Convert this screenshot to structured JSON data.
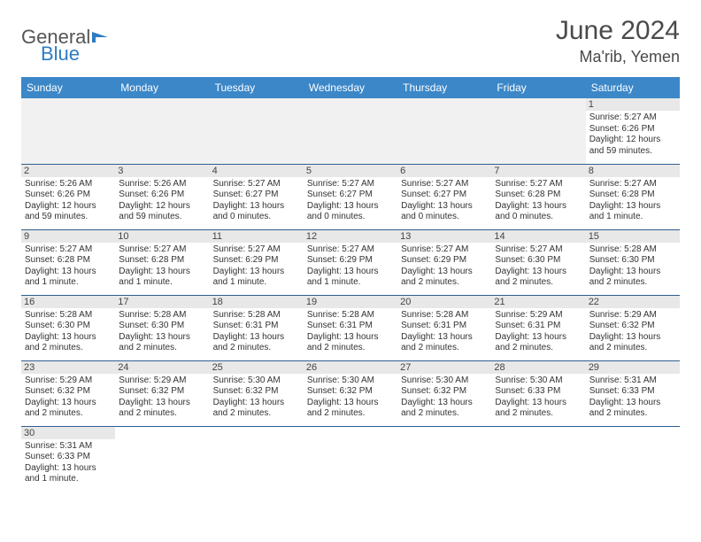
{
  "logo": {
    "text1": "General",
    "text2": "Blue"
  },
  "title": "June 2024",
  "location": "Ma'rib, Yemen",
  "colors": {
    "header_bg": "#3b87c8",
    "header_text": "#ffffff",
    "daynum_bg": "#e8e8e8",
    "row_border": "#2e5f8f",
    "logo_blue": "#2e7cc0"
  },
  "weekdays": [
    "Sunday",
    "Monday",
    "Tuesday",
    "Wednesday",
    "Thursday",
    "Friday",
    "Saturday"
  ],
  "weeks": [
    [
      null,
      null,
      null,
      null,
      null,
      null,
      {
        "d": "1",
        "sr": "Sunrise: 5:27 AM",
        "ss": "Sunset: 6:26 PM",
        "dl1": "Daylight: 12 hours",
        "dl2": "and 59 minutes."
      }
    ],
    [
      {
        "d": "2",
        "sr": "Sunrise: 5:26 AM",
        "ss": "Sunset: 6:26 PM",
        "dl1": "Daylight: 12 hours",
        "dl2": "and 59 minutes."
      },
      {
        "d": "3",
        "sr": "Sunrise: 5:26 AM",
        "ss": "Sunset: 6:26 PM",
        "dl1": "Daylight: 12 hours",
        "dl2": "and 59 minutes."
      },
      {
        "d": "4",
        "sr": "Sunrise: 5:27 AM",
        "ss": "Sunset: 6:27 PM",
        "dl1": "Daylight: 13 hours",
        "dl2": "and 0 minutes."
      },
      {
        "d": "5",
        "sr": "Sunrise: 5:27 AM",
        "ss": "Sunset: 6:27 PM",
        "dl1": "Daylight: 13 hours",
        "dl2": "and 0 minutes."
      },
      {
        "d": "6",
        "sr": "Sunrise: 5:27 AM",
        "ss": "Sunset: 6:27 PM",
        "dl1": "Daylight: 13 hours",
        "dl2": "and 0 minutes."
      },
      {
        "d": "7",
        "sr": "Sunrise: 5:27 AM",
        "ss": "Sunset: 6:28 PM",
        "dl1": "Daylight: 13 hours",
        "dl2": "and 0 minutes."
      },
      {
        "d": "8",
        "sr": "Sunrise: 5:27 AM",
        "ss": "Sunset: 6:28 PM",
        "dl1": "Daylight: 13 hours",
        "dl2": "and 1 minute."
      }
    ],
    [
      {
        "d": "9",
        "sr": "Sunrise: 5:27 AM",
        "ss": "Sunset: 6:28 PM",
        "dl1": "Daylight: 13 hours",
        "dl2": "and 1 minute."
      },
      {
        "d": "10",
        "sr": "Sunrise: 5:27 AM",
        "ss": "Sunset: 6:28 PM",
        "dl1": "Daylight: 13 hours",
        "dl2": "and 1 minute."
      },
      {
        "d": "11",
        "sr": "Sunrise: 5:27 AM",
        "ss": "Sunset: 6:29 PM",
        "dl1": "Daylight: 13 hours",
        "dl2": "and 1 minute."
      },
      {
        "d": "12",
        "sr": "Sunrise: 5:27 AM",
        "ss": "Sunset: 6:29 PM",
        "dl1": "Daylight: 13 hours",
        "dl2": "and 1 minute."
      },
      {
        "d": "13",
        "sr": "Sunrise: 5:27 AM",
        "ss": "Sunset: 6:29 PM",
        "dl1": "Daylight: 13 hours",
        "dl2": "and 2 minutes."
      },
      {
        "d": "14",
        "sr": "Sunrise: 5:27 AM",
        "ss": "Sunset: 6:30 PM",
        "dl1": "Daylight: 13 hours",
        "dl2": "and 2 minutes."
      },
      {
        "d": "15",
        "sr": "Sunrise: 5:28 AM",
        "ss": "Sunset: 6:30 PM",
        "dl1": "Daylight: 13 hours",
        "dl2": "and 2 minutes."
      }
    ],
    [
      {
        "d": "16",
        "sr": "Sunrise: 5:28 AM",
        "ss": "Sunset: 6:30 PM",
        "dl1": "Daylight: 13 hours",
        "dl2": "and 2 minutes."
      },
      {
        "d": "17",
        "sr": "Sunrise: 5:28 AM",
        "ss": "Sunset: 6:30 PM",
        "dl1": "Daylight: 13 hours",
        "dl2": "and 2 minutes."
      },
      {
        "d": "18",
        "sr": "Sunrise: 5:28 AM",
        "ss": "Sunset: 6:31 PM",
        "dl1": "Daylight: 13 hours",
        "dl2": "and 2 minutes."
      },
      {
        "d": "19",
        "sr": "Sunrise: 5:28 AM",
        "ss": "Sunset: 6:31 PM",
        "dl1": "Daylight: 13 hours",
        "dl2": "and 2 minutes."
      },
      {
        "d": "20",
        "sr": "Sunrise: 5:28 AM",
        "ss": "Sunset: 6:31 PM",
        "dl1": "Daylight: 13 hours",
        "dl2": "and 2 minutes."
      },
      {
        "d": "21",
        "sr": "Sunrise: 5:29 AM",
        "ss": "Sunset: 6:31 PM",
        "dl1": "Daylight: 13 hours",
        "dl2": "and 2 minutes."
      },
      {
        "d": "22",
        "sr": "Sunrise: 5:29 AM",
        "ss": "Sunset: 6:32 PM",
        "dl1": "Daylight: 13 hours",
        "dl2": "and 2 minutes."
      }
    ],
    [
      {
        "d": "23",
        "sr": "Sunrise: 5:29 AM",
        "ss": "Sunset: 6:32 PM",
        "dl1": "Daylight: 13 hours",
        "dl2": "and 2 minutes."
      },
      {
        "d": "24",
        "sr": "Sunrise: 5:29 AM",
        "ss": "Sunset: 6:32 PM",
        "dl1": "Daylight: 13 hours",
        "dl2": "and 2 minutes."
      },
      {
        "d": "25",
        "sr": "Sunrise: 5:30 AM",
        "ss": "Sunset: 6:32 PM",
        "dl1": "Daylight: 13 hours",
        "dl2": "and 2 minutes."
      },
      {
        "d": "26",
        "sr": "Sunrise: 5:30 AM",
        "ss": "Sunset: 6:32 PM",
        "dl1": "Daylight: 13 hours",
        "dl2": "and 2 minutes."
      },
      {
        "d": "27",
        "sr": "Sunrise: 5:30 AM",
        "ss": "Sunset: 6:32 PM",
        "dl1": "Daylight: 13 hours",
        "dl2": "and 2 minutes."
      },
      {
        "d": "28",
        "sr": "Sunrise: 5:30 AM",
        "ss": "Sunset: 6:33 PM",
        "dl1": "Daylight: 13 hours",
        "dl2": "and 2 minutes."
      },
      {
        "d": "29",
        "sr": "Sunrise: 5:31 AM",
        "ss": "Sunset: 6:33 PM",
        "dl1": "Daylight: 13 hours",
        "dl2": "and 2 minutes."
      }
    ],
    [
      {
        "d": "30",
        "sr": "Sunrise: 5:31 AM",
        "ss": "Sunset: 6:33 PM",
        "dl1": "Daylight: 13 hours",
        "dl2": "and 1 minute."
      },
      null,
      null,
      null,
      null,
      null,
      null
    ]
  ]
}
